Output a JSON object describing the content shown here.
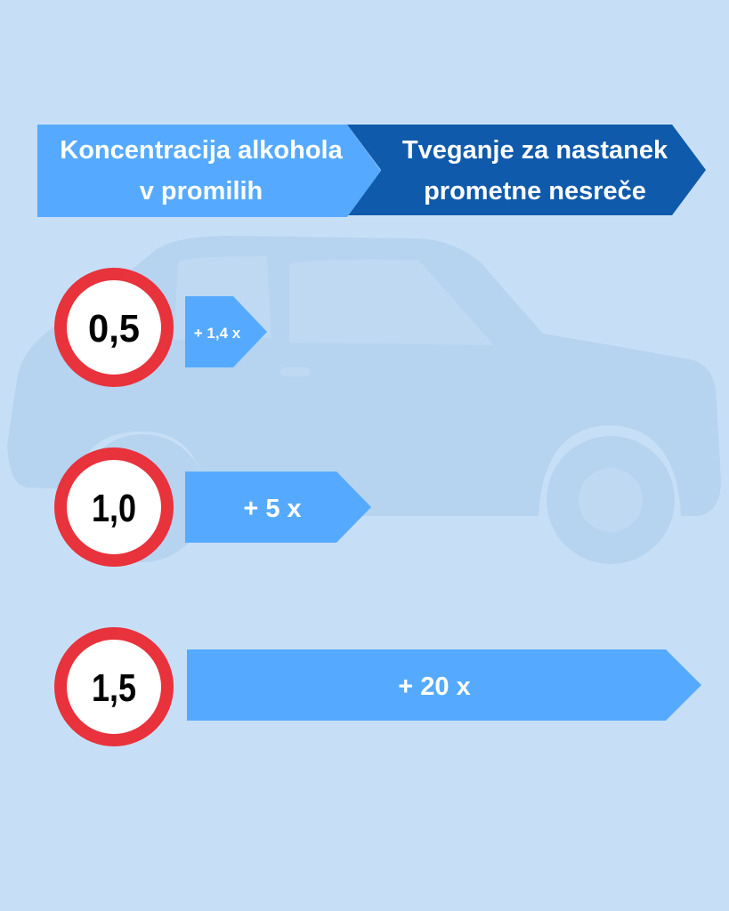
{
  "header": {
    "left_line1": "Koncentracija alkohola",
    "left_line2": "v promilih",
    "right_line1": "Tveganje za nastanek",
    "right_line2": "prometne nesreče"
  },
  "rows": [
    {
      "concentration": "0,5",
      "risk": "+ 1,4 x"
    },
    {
      "concentration": "1,0",
      "risk": "+ 5 x"
    },
    {
      "concentration": "1,5",
      "risk": "+ 20 x"
    }
  ],
  "colors": {
    "background": "#c7dff6",
    "car_silhouette": "#b6d3f0",
    "light_blue": "#55aaff",
    "dark_blue": "#0f5aab",
    "sign_red": "#e8323c"
  },
  "icons": [
    "car-silhouette",
    "speed-limit-sign"
  ]
}
